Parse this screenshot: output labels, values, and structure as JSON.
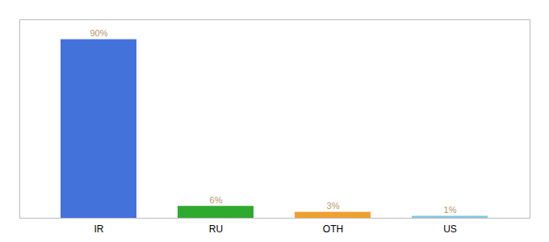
{
  "chart_data": {
    "type": "bar",
    "categories": [
      "IR",
      "RU",
      "OTH",
      "US"
    ],
    "values": [
      90,
      6,
      3,
      1
    ],
    "value_labels": [
      "90%",
      "6%",
      "3%",
      "1%"
    ],
    "colors": [
      "#4472db",
      "#2eaa2e",
      "#f0a030",
      "#7ec8e3"
    ],
    "ylim": [
      0,
      100
    ],
    "data_labels": true,
    "tick_labels": "x",
    "grid": false
  }
}
